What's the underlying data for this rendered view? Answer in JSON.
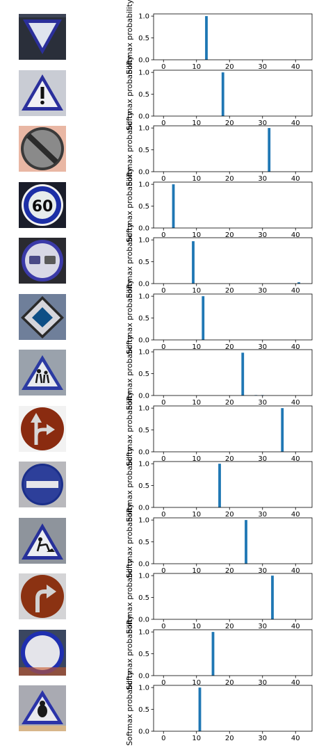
{
  "chart_data": [
    {
      "type": "bar",
      "ylabel": "Softmax probability",
      "xlim": [
        -3,
        45
      ],
      "ylim": [
        0,
        1.05
      ],
      "xticks": [
        "0",
        "10",
        "20",
        "30",
        "40"
      ],
      "yticks": [
        "0.0",
        "0.5",
        "1.0"
      ],
      "bars": [
        {
          "x": 13,
          "y": 1.0
        }
      ],
      "sign": {
        "shape": "yield",
        "bg": "#2a2f3a",
        "edge": "#2b2f9a",
        "fill": "#dfe4ee",
        "accent": "#222222"
      }
    },
    {
      "type": "bar",
      "ylabel": "Softmax probability",
      "xlim": [
        -3,
        45
      ],
      "ylim": [
        0,
        1.05
      ],
      "xticks": [
        "0",
        "10",
        "20",
        "30",
        "40"
      ],
      "yticks": [
        "0.0",
        "0.5",
        "1.0"
      ],
      "bars": [
        {
          "x": 18,
          "y": 1.0
        }
      ],
      "sign": {
        "shape": "warning",
        "bg": "#c9ccd4",
        "edge": "#2a2f9c",
        "fill": "#f0f0f4",
        "accent": "#111111"
      }
    },
    {
      "type": "bar",
      "ylabel": "Softmax probability",
      "xlim": [
        -3,
        45
      ],
      "ylim": [
        0,
        1.05
      ],
      "xticks": [
        "0",
        "10",
        "20",
        "30",
        "40"
      ],
      "yticks": [
        "0.0",
        "0.5",
        "1.0"
      ],
      "bars": [
        {
          "x": 32,
          "y": 1.0
        }
      ],
      "sign": {
        "shape": "endlimits",
        "bg": "#e9b7a4",
        "edge": "#3a3a3a",
        "fill": "#8a8a8a",
        "accent": "#2b2b2b"
      }
    },
    {
      "type": "bar",
      "ylabel": "Softmax probability",
      "xlim": [
        -3,
        45
      ],
      "ylim": [
        0,
        1.05
      ],
      "xticks": [
        "0",
        "10",
        "20",
        "30",
        "40"
      ],
      "yticks": [
        "0.0",
        "0.5",
        "1.0"
      ],
      "bars": [
        {
          "x": 3,
          "y": 1.0
        }
      ],
      "sign": {
        "shape": "speed60",
        "bg": "#1a1d2a",
        "edge": "#1c2fa6",
        "fill": "#e6ecec",
        "accent": "#0b0b0b"
      }
    },
    {
      "type": "bar",
      "ylabel": "Softmax probability",
      "xlim": [
        -3,
        45
      ],
      "ylim": [
        0,
        1.05
      ],
      "xticks": [
        "0",
        "10",
        "20",
        "30",
        "40"
      ],
      "yticks": [
        "0.0",
        "0.5",
        "1.0"
      ],
      "bars": [
        {
          "x": 9,
          "y": 0.97
        },
        {
          "x": 41,
          "y": 0.03
        }
      ],
      "sign": {
        "shape": "nopassing",
        "bg": "#2a2a30",
        "edge": "#3b3aa8",
        "fill": "#d8d8e6",
        "accent": "#4a4a86"
      }
    },
    {
      "type": "bar",
      "ylabel": "Softmax probability",
      "xlim": [
        -3,
        45
      ],
      "ylim": [
        0,
        1.05
      ],
      "xticks": [
        "0",
        "10",
        "20",
        "30",
        "40"
      ],
      "yticks": [
        "0.0",
        "0.5",
        "1.0"
      ],
      "bars": [
        {
          "x": 12,
          "y": 1.0
        }
      ],
      "sign": {
        "shape": "priority",
        "bg": "#6f7f9a",
        "edge": "#d6d6dc",
        "fill": "#0e4f86",
        "accent": "#1d1d1d"
      }
    },
    {
      "type": "bar",
      "ylabel": "Softmax probability",
      "xlim": [
        -3,
        45
      ],
      "ylim": [
        0,
        1.05
      ],
      "xticks": [
        "0",
        "10",
        "20",
        "30",
        "40"
      ],
      "yticks": [
        "0.0",
        "0.5",
        "1.0"
      ],
      "bars": [
        {
          "x": 24,
          "y": 0.98
        },
        {
          "x": 28,
          "y": 0.01
        },
        {
          "x": 30,
          "y": 0.01
        }
      ],
      "sign": {
        "shape": "children",
        "bg": "#9aa2ac",
        "edge": "#2b3aa2",
        "fill": "#e8eaee",
        "accent": "#1a1a1a"
      }
    },
    {
      "type": "bar",
      "ylabel": "Softmax probability",
      "xlim": [
        -3,
        45
      ],
      "ylim": [
        0,
        1.05
      ],
      "xticks": [
        "0",
        "10",
        "20",
        "30",
        "40"
      ],
      "yticks": [
        "0.0",
        "0.5",
        "1.0"
      ],
      "bars": [
        {
          "x": 36,
          "y": 1.0
        }
      ],
      "sign": {
        "shape": "straightright",
        "bg": "#f2f2f2",
        "edge": "#7a2a10",
        "fill": "#8a2b10",
        "accent": "#d8d8d8"
      }
    },
    {
      "type": "bar",
      "ylabel": "Softmax probability",
      "xlim": [
        -3,
        45
      ],
      "ylim": [
        0,
        1.05
      ],
      "xticks": [
        "0",
        "10",
        "20",
        "30",
        "40"
      ],
      "yticks": [
        "0.0",
        "0.5",
        "1.0"
      ],
      "bars": [
        {
          "x": 17,
          "y": 1.0
        }
      ],
      "sign": {
        "shape": "noentry",
        "bg": "#b8b8bc",
        "edge": "#1b2f8a",
        "fill": "#2d3f9a",
        "accent": "#e6e6ea"
      }
    },
    {
      "type": "bar",
      "ylabel": "Softmax probability",
      "xlim": [
        -3,
        45
      ],
      "ylim": [
        0,
        1.05
      ],
      "xticks": [
        "0",
        "10",
        "20",
        "30",
        "40"
      ],
      "yticks": [
        "0.0",
        "0.5",
        "1.0"
      ],
      "bars": [
        {
          "x": 25,
          "y": 1.0
        }
      ],
      "sign": {
        "shape": "roadwork",
        "bg": "#8e949c",
        "edge": "#26309a",
        "fill": "#eceef2",
        "accent": "#151515"
      }
    },
    {
      "type": "bar",
      "ylabel": "Softmax probability",
      "xlim": [
        -3,
        45
      ],
      "ylim": [
        0,
        1.05
      ],
      "xticks": [
        "0",
        "10",
        "20",
        "30",
        "40"
      ],
      "yticks": [
        "0.0",
        "0.5",
        "1.0"
      ],
      "bars": [
        {
          "x": 33,
          "y": 1.0
        }
      ],
      "sign": {
        "shape": "turnright",
        "bg": "#d4d4d6",
        "edge": "#7a2a12",
        "fill": "#8b3212",
        "accent": "#d2d2d2"
      }
    },
    {
      "type": "bar",
      "ylabel": "Softmax probability",
      "xlim": [
        -3,
        45
      ],
      "ylim": [
        0,
        1.05
      ],
      "xticks": [
        "0",
        "10",
        "20",
        "30",
        "40"
      ],
      "yticks": [
        "0.0",
        "0.5",
        "1.0"
      ],
      "bars": [
        {
          "x": 15,
          "y": 1.0
        }
      ],
      "sign": {
        "shape": "novehicles",
        "bg": "#3a4660",
        "edge": "#1f2fb0",
        "fill": "#e4e4ea",
        "accent": "#1f2fb0"
      }
    },
    {
      "type": "bar",
      "ylabel": "Softmax probability",
      "xlim": [
        -3,
        45
      ],
      "ylim": [
        0,
        1.05
      ],
      "xticks": [
        "0",
        "10",
        "20",
        "30",
        "40"
      ],
      "yticks": [
        "0.0",
        "0.5",
        "1.0"
      ],
      "bars": [
        {
          "x": 11,
          "y": 1.0
        }
      ],
      "sign": {
        "shape": "bird",
        "bg": "#a9aab2",
        "edge": "#2a33a8",
        "fill": "#d7b68a",
        "accent": "#1a1a1a"
      }
    }
  ]
}
